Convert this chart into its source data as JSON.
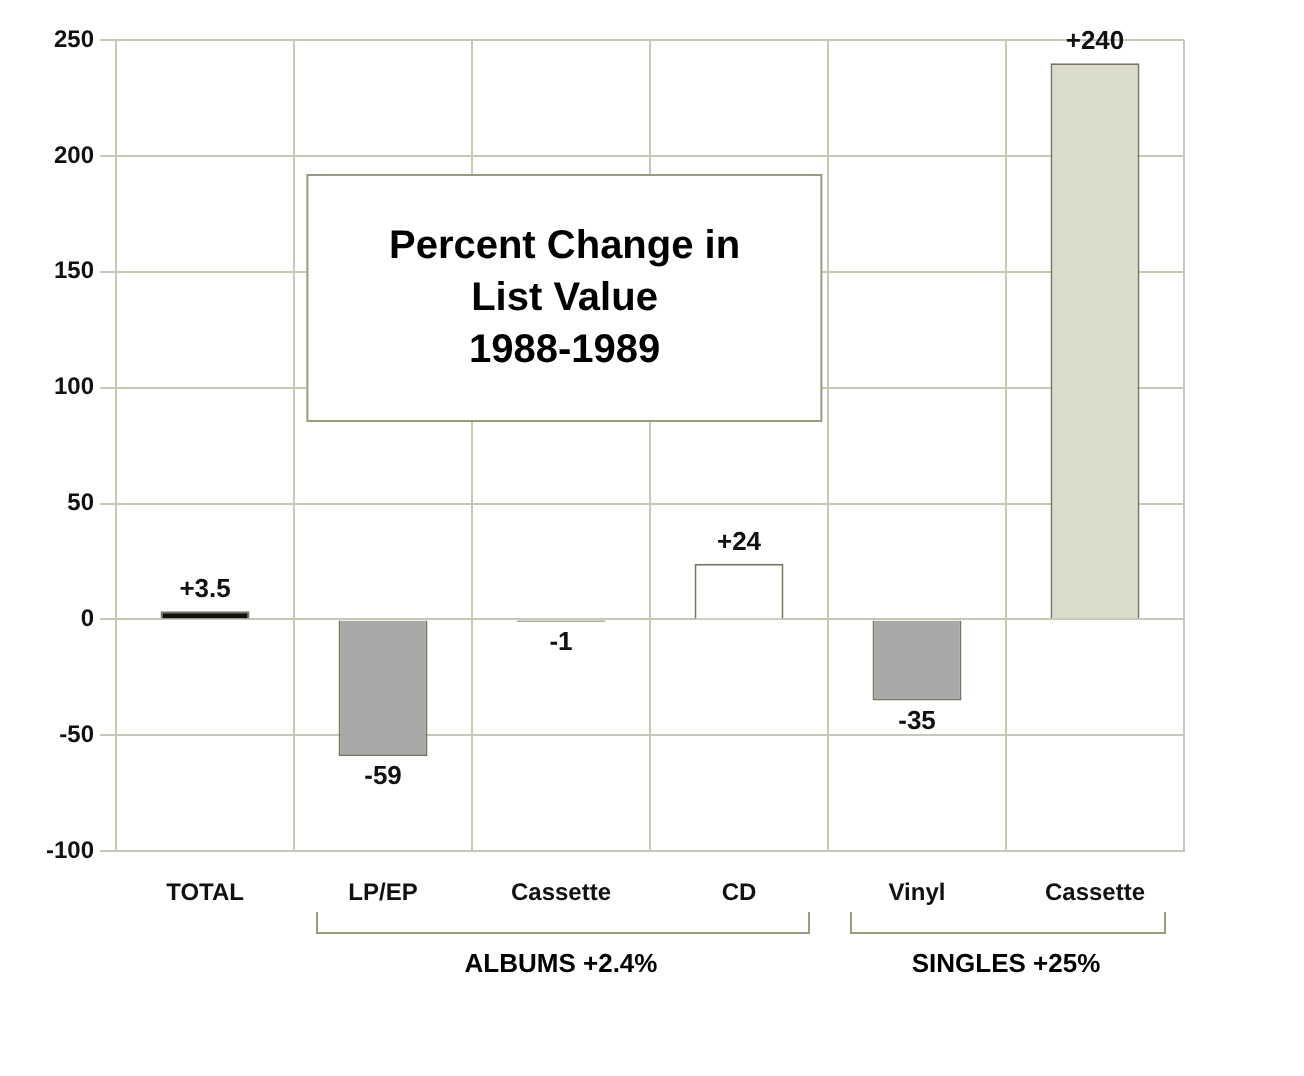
{
  "chart_data": {
    "type": "bar",
    "title": "Percent Change in\nList Value\n1988-1989",
    "categories": [
      "TOTAL",
      "LP/EP",
      "Cassette",
      "CD",
      "Vinyl",
      "Cassette"
    ],
    "values": [
      3.5,
      -59,
      -1,
      24,
      -35,
      240
    ],
    "colors": [
      "#111111",
      "#a8a8a8",
      "#444444",
      "#ffffff",
      "#a8a8a8",
      "#dcdccc"
    ],
    "value_labels": [
      "+3.5",
      "-59",
      "-1",
      "+24",
      "-35",
      "+240"
    ],
    "ylim": [
      -100,
      250
    ],
    "yticks": [
      -100,
      -50,
      0,
      50,
      100,
      150,
      200,
      250
    ],
    "grid": true,
    "annotations": [
      "ALBUMS +2.4%",
      "SINGLES +25%"
    ]
  }
}
